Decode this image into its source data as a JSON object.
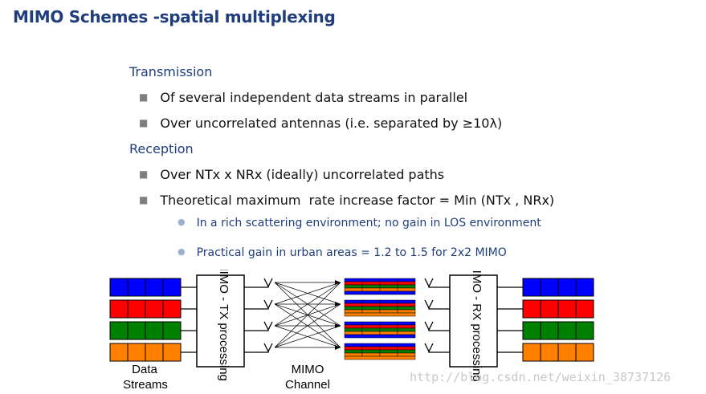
{
  "title": "MIMO Schemes -spatial multiplexing",
  "sections": [
    {
      "heading": "Transmission",
      "bullets": [
        "Of several independent data streams in parallel",
        "Over uncorrelated antennas (i.e. separated by ≥10λ)"
      ]
    },
    {
      "heading": "Reception",
      "bullets": [
        "Over NTx x NRx (ideally) uncorrelated paths",
        "Theoretical maximum  rate increase factor = Min (NTx , NRx)"
      ]
    }
  ],
  "sub_bullets": [
    "In a rich scattering environment; no gain in LOS environment",
    "Practical gain in urban areas = 1.2 to 1.5 for 2x2 MIMO"
  ],
  "diagram": {
    "tx_label": "MIMO - TX processing",
    "rx_label": "MIMO - RX processing",
    "data_label_1": "Data",
    "data_label_2": "Streams",
    "channel_label_1": "MIMO",
    "channel_label_2": "Channel",
    "stream_colors": [
      "#0000ff",
      "#ff0000",
      "#008000",
      "#ff8000"
    ]
  },
  "watermark": "http://blog.csdn.net/weixin_38737126"
}
